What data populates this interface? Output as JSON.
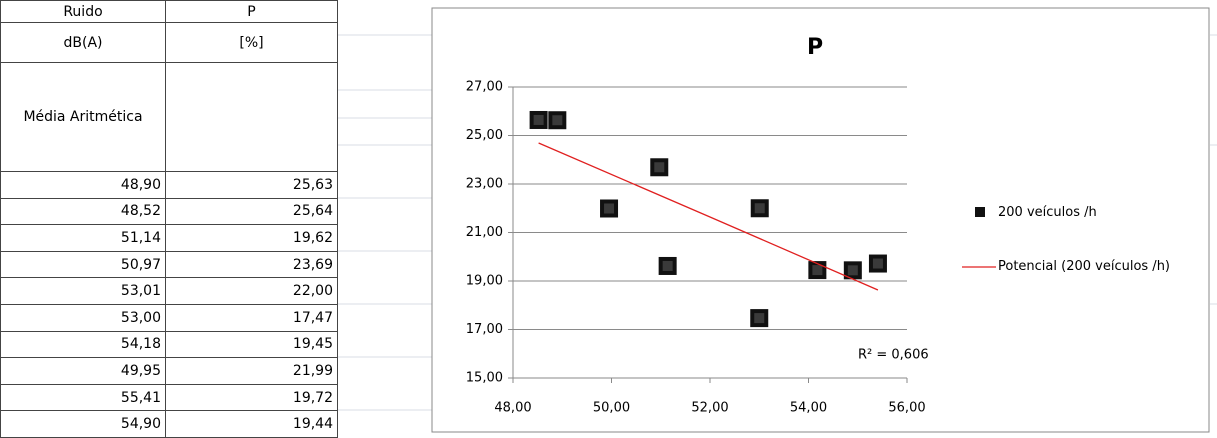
{
  "table": {
    "header": [
      [
        "Ruido",
        "P"
      ],
      [
        "dB(A)",
        "[%]"
      ],
      [
        "Média Aritmética"
      ]
    ],
    "rows": [
      [
        "48,90",
        "25,63"
      ],
      [
        "48,52",
        "25,64"
      ],
      [
        "51,14",
        "19,62"
      ],
      [
        "50,97",
        "23,69"
      ],
      [
        "53,01",
        "22,00"
      ],
      [
        "53,00",
        "17,47"
      ],
      [
        "54,18",
        "19,45"
      ],
      [
        "49,95",
        "21,99"
      ],
      [
        "55,41",
        "19,72"
      ],
      [
        "54,90",
        "19,44"
      ]
    ]
  },
  "chart_data": {
    "type": "scatter",
    "title": "P",
    "series": [
      {
        "name": "200 veículos /h",
        "color": "#111111",
        "style": "marker",
        "x": [
          48.9,
          48.52,
          51.14,
          50.97,
          53.01,
          53.0,
          54.18,
          49.95,
          55.41,
          54.9
        ],
        "values": [
          25.63,
          25.64,
          19.62,
          23.69,
          22.0,
          17.47,
          19.45,
          21.99,
          19.72,
          19.44
        ]
      },
      {
        "name": "Potencial (200 veículos /h)",
        "color": "#e02020",
        "style": "line",
        "x": [
          48.52,
          52,
          55.41
        ],
        "values": [
          24.69,
          21.64,
          18.63
        ]
      }
    ],
    "annotation": "R² = 0,606",
    "xlim": [
      48,
      56
    ],
    "xticks": [
      {
        "value": 48,
        "label": "48,00"
      },
      {
        "value": 50,
        "label": "50,00"
      },
      {
        "value": 52,
        "label": "52,00"
      },
      {
        "value": 54,
        "label": "54,00"
      },
      {
        "value": 56,
        "label": "56,00"
      }
    ],
    "ylim": [
      15,
      27
    ],
    "yticks": [
      {
        "value": 15,
        "label": "15,00"
      },
      {
        "value": 17,
        "label": "17,00"
      },
      {
        "value": 19,
        "label": "19,00"
      },
      {
        "value": 21,
        "label": "21,00"
      },
      {
        "value": 23,
        "label": "23,00"
      },
      {
        "value": 25,
        "label": "25,00"
      },
      {
        "value": 27,
        "label": "27,00"
      }
    ],
    "grid": true
  }
}
